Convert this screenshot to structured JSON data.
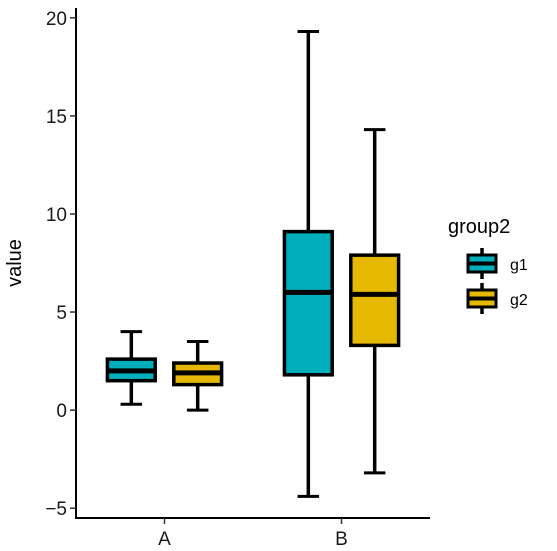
{
  "chart_data": {
    "type": "boxplot",
    "title": "",
    "xlabel": "",
    "ylabel": "value",
    "categories": [
      "A",
      "B"
    ],
    "ylim": [
      -5.5,
      20.5
    ],
    "yticks": [
      -5,
      0,
      5,
      10,
      15,
      20
    ],
    "ytick_labels": [
      "−5",
      "0",
      "5",
      "10",
      "15",
      "20"
    ],
    "grid": false,
    "legend": {
      "title": "group2",
      "position": "right"
    },
    "series": [
      {
        "name": "g1",
        "color": "#00AFBB",
        "boxes": [
          {
            "category": "A",
            "min": 0.3,
            "q1": 1.5,
            "median": 2.0,
            "q3": 2.6,
            "max": 4.0
          },
          {
            "category": "B",
            "min": -4.4,
            "q1": 1.8,
            "median": 6.0,
            "q3": 9.1,
            "max": 19.3
          }
        ]
      },
      {
        "name": "g2",
        "color": "#E7B800",
        "boxes": [
          {
            "category": "A",
            "min": 0.0,
            "q1": 1.3,
            "median": 1.9,
            "q3": 2.4,
            "max": 3.5
          },
          {
            "category": "B",
            "min": -3.2,
            "q1": 3.3,
            "median": 5.9,
            "q3": 7.9,
            "max": 14.3
          }
        ]
      }
    ]
  }
}
